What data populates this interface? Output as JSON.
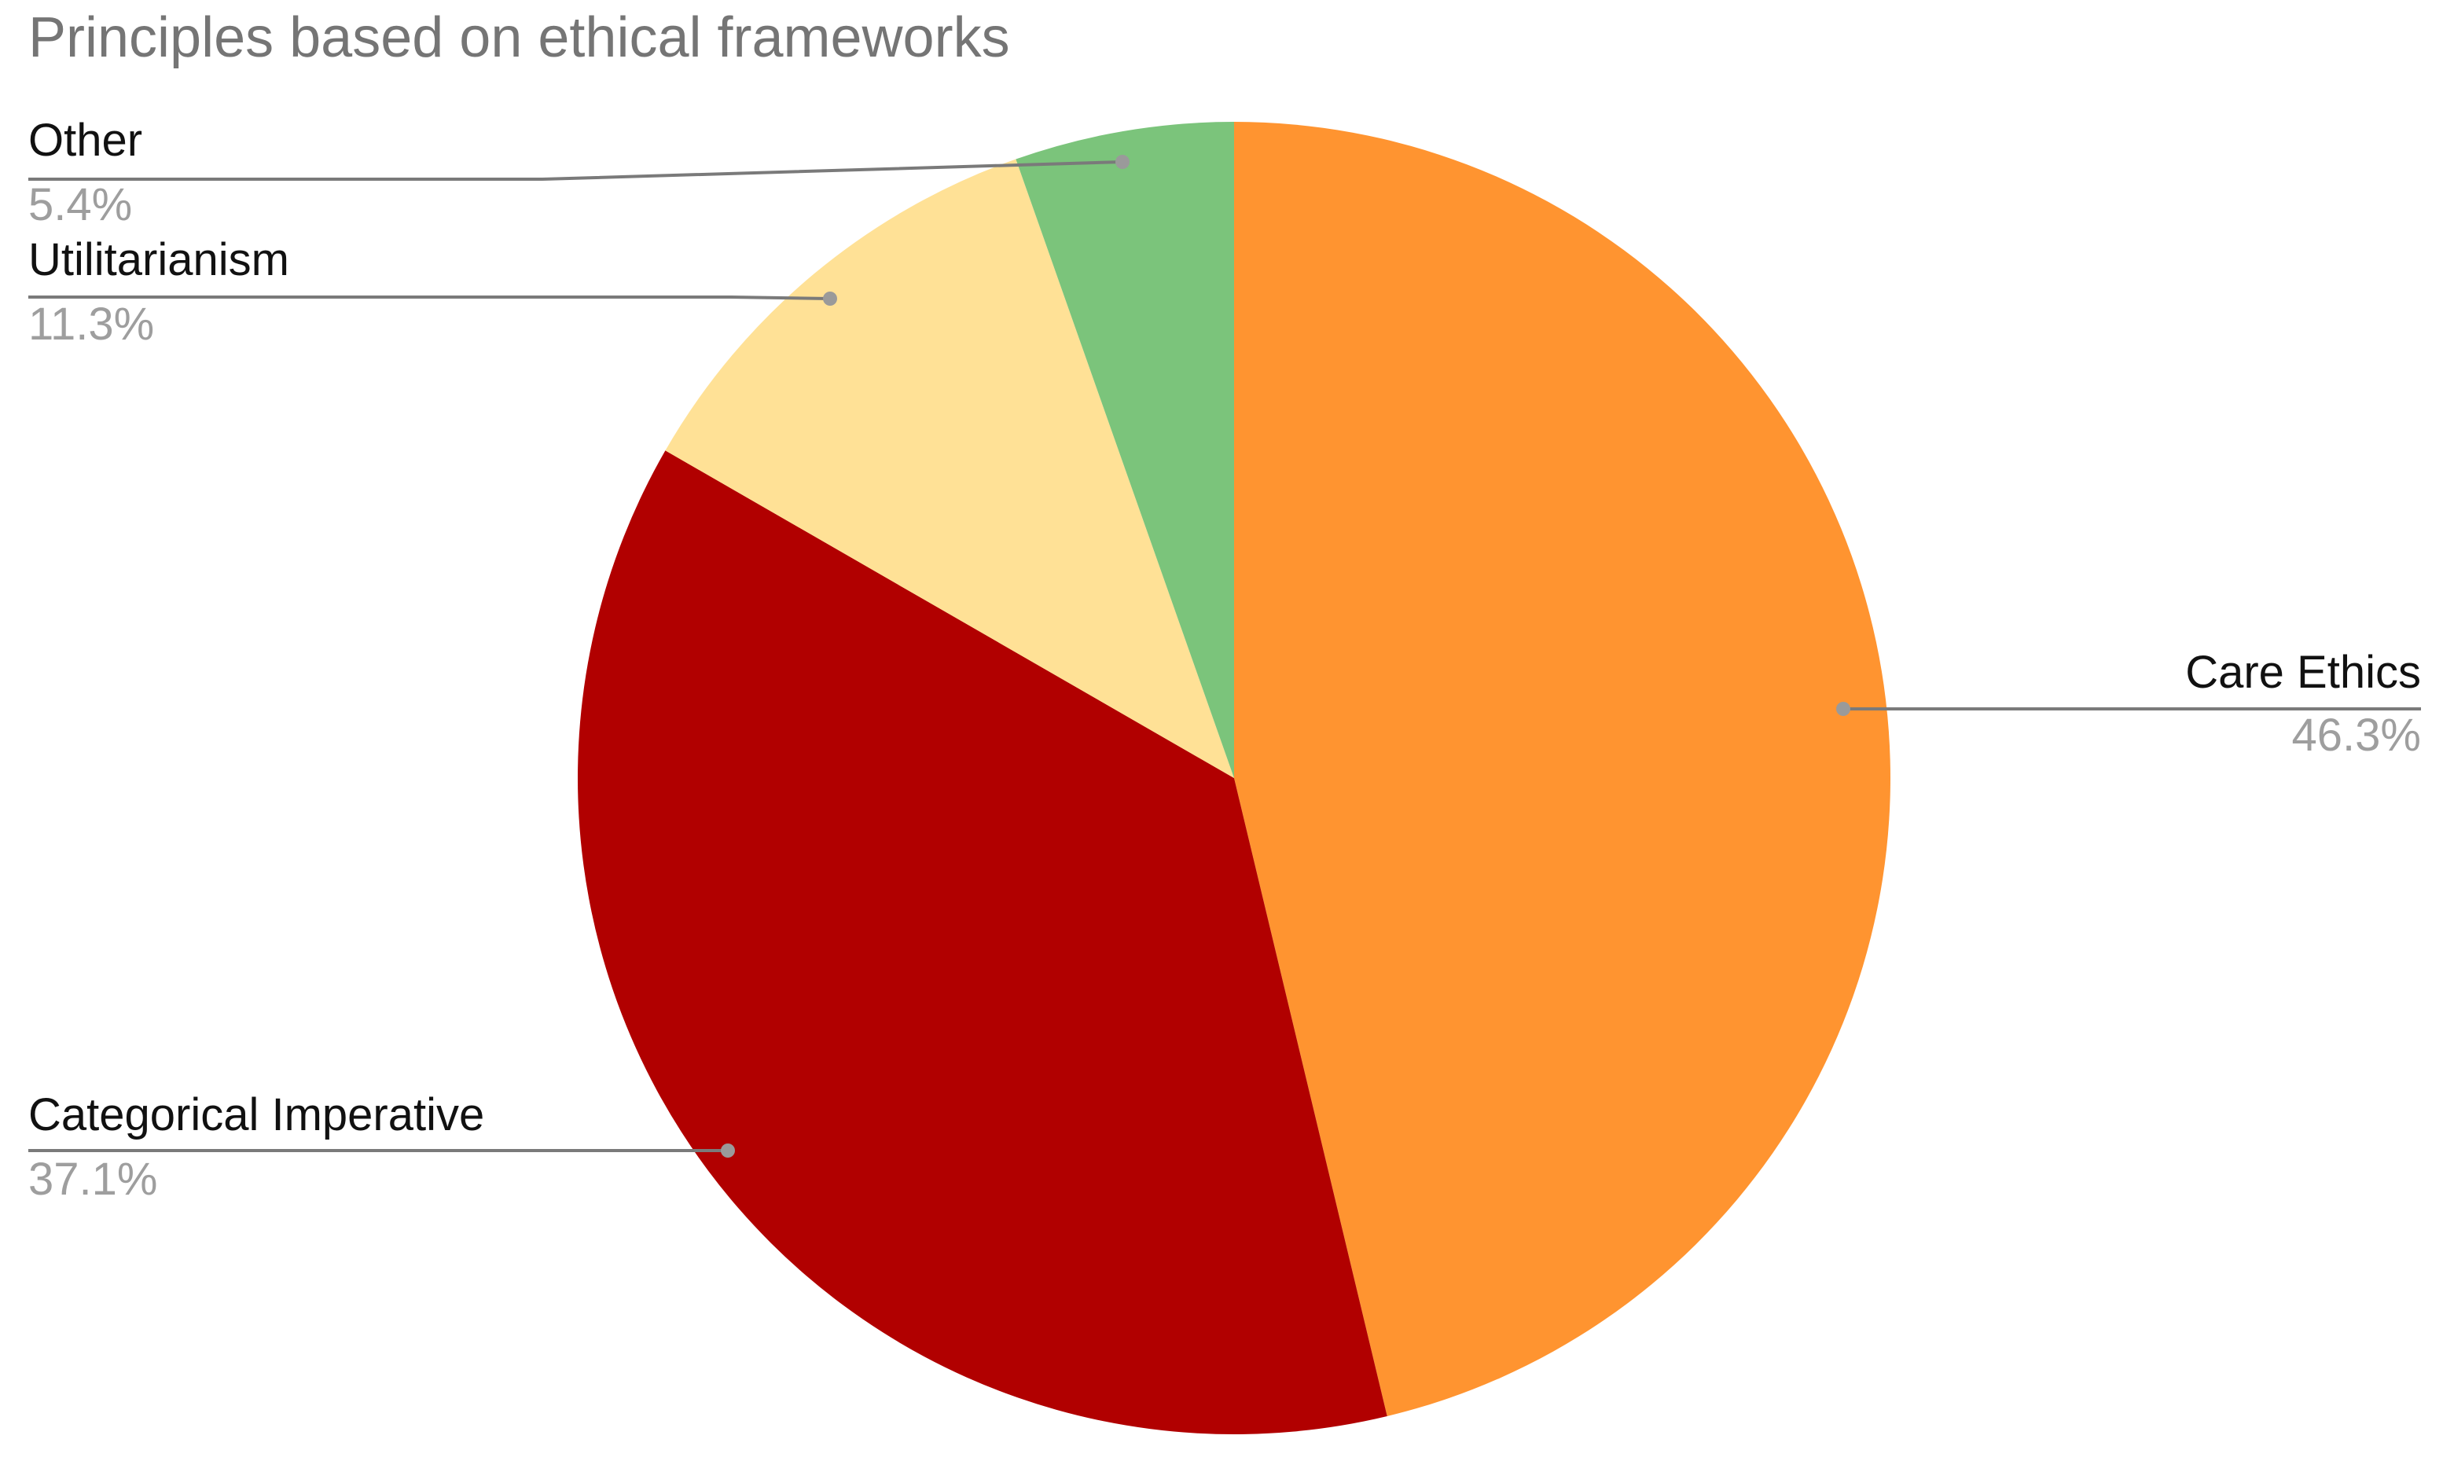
{
  "chart_data": {
    "type": "pie",
    "title": "Principles based on ethical frameworks",
    "slices": [
      {
        "label": "Care Ethics",
        "value": 46.3,
        "percent_label": "46.3%",
        "color": "#FF9430"
      },
      {
        "label": "Categorical Imperative",
        "value": 37.1,
        "percent_label": "37.1%",
        "color": "#B10000"
      },
      {
        "label": "Utilitarianism",
        "value": 11.3,
        "percent_label": "11.3%",
        "color": "#FFE196"
      },
      {
        "label": "Other",
        "value": 5.4,
        "percent_label": "5.4%",
        "color": "#7BC47B"
      }
    ],
    "start_angle": "12 o'clock",
    "direction": "clockwise",
    "legend": "none",
    "label_placement": "outside with leader lines"
  }
}
